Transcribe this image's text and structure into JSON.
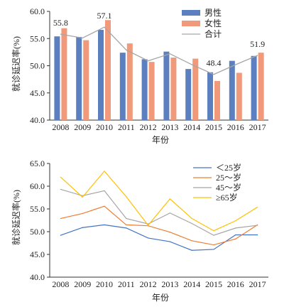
{
  "chart_data": [
    {
      "type": "bar",
      "categories": [
        "2008",
        "2009",
        "2010",
        "2011",
        "2012",
        "2013",
        "2014",
        "2015",
        "2016",
        "2017"
      ],
      "series": [
        {
          "name": "男性",
          "type": "bar",
          "color": "#5b7fbf",
          "values": [
            55.4,
            55.3,
            56.6,
            52.4,
            51.2,
            52.6,
            49.4,
            48.8,
            50.9,
            51.8
          ]
        },
        {
          "name": "女性",
          "type": "bar",
          "color": "#f0997b",
          "values": [
            56.9,
            54.7,
            58.4,
            54.1,
            50.7,
            51.5,
            51.3,
            47.2,
            48.7,
            52.4
          ]
        },
        {
          "name": "合计",
          "type": "line",
          "color": "#a6a6a6",
          "values": [
            55.8,
            55.1,
            57.1,
            52.9,
            50.9,
            52.2,
            50.2,
            48.4,
            50.2,
            51.9
          ]
        }
      ],
      "data_labels": [
        {
          "category": "2008",
          "text": "55.8"
        },
        {
          "category": "2010",
          "text": "57.1"
        },
        {
          "category": "2015",
          "text": "48.4"
        },
        {
          "category": "2017",
          "text": "51.9"
        }
      ],
      "xlabel": "年份",
      "ylabel": "就诊延迟率(%)",
      "ylim": [
        40.0,
        60.0
      ],
      "yticks": [
        "40.0",
        "45.0",
        "50.0",
        "55.0",
        "60.0"
      ],
      "grid": false,
      "legend_position": "top-right"
    },
    {
      "type": "line",
      "categories": [
        "2008",
        "2009",
        "2010",
        "2011",
        "2012",
        "2013",
        "2014",
        "2015",
        "2016",
        "2017"
      ],
      "series": [
        {
          "name": "＜25岁",
          "color": "#4472c4",
          "values": [
            49.2,
            50.9,
            51.5,
            50.8,
            48.6,
            47.8,
            45.9,
            46.1,
            49.3,
            49.3
          ]
        },
        {
          "name": "25～岁",
          "color": "#ed7d31",
          "values": [
            52.9,
            54.0,
            55.6,
            51.5,
            51.3,
            49.9,
            48.0,
            47.1,
            48.4,
            51.5
          ]
        },
        {
          "name": "45～岁",
          "color": "#a5a5a5",
          "values": [
            59.3,
            57.9,
            59.0,
            52.9,
            51.7,
            54.1,
            51.8,
            49.2,
            50.8,
            51.4
          ]
        },
        {
          "name": "≥65岁",
          "color": "#ffc000",
          "values": [
            62.0,
            57.6,
            63.3,
            57.7,
            51.4,
            57.2,
            52.9,
            50.2,
            52.4,
            55.4
          ]
        }
      ],
      "xlabel": "年份",
      "ylabel": "就诊延迟率(%)",
      "ylim": [
        40.0,
        65.0
      ],
      "yticks": [
        "40.0",
        "45.0",
        "50.0",
        "55.0",
        "60.0",
        "65.0"
      ],
      "grid": false,
      "legend_position": "top-right"
    }
  ]
}
